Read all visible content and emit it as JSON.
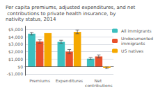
{
  "chart_data": {
    "type": "bar",
    "title": "Per capita premiums, adjusted expenditures, and net contributions to private health insurance, by nativity status, 2014",
    "categories": [
      "Premiums",
      "Expenditures",
      "Net contributions"
    ],
    "series": [
      {
        "name": "All immigrants",
        "color": "#3bbfbf",
        "values": [
          4400,
          3300,
          1050
        ],
        "errors": [
          170,
          220,
          150
        ]
      },
      {
        "name": "Undocumented\nimmigrants",
        "color": "#e8502a",
        "values": [
          3350,
          2000,
          1350
        ],
        "errors": [
          230,
          290,
          200
        ]
      },
      {
        "name": "US natives",
        "color": "#f5a800",
        "values": [
          4480,
          4650,
          -180
        ],
        "errors": [
          0,
          250,
          120
        ]
      }
    ],
    "ylim": [
      -1200,
      5400
    ],
    "yticks": [
      {
        "value": -1000,
        "label": "-$1,000"
      },
      {
        "value": 0,
        "label": "$0"
      },
      {
        "value": 1000,
        "label": "$1,000"
      },
      {
        "value": 2000,
        "label": "$2,000"
      },
      {
        "value": 3000,
        "label": "$3,000"
      },
      {
        "value": 4000,
        "label": "$4,000"
      },
      {
        "value": 5000,
        "label": "$5,000"
      }
    ],
    "grid": true,
    "legend": "upper right"
  }
}
